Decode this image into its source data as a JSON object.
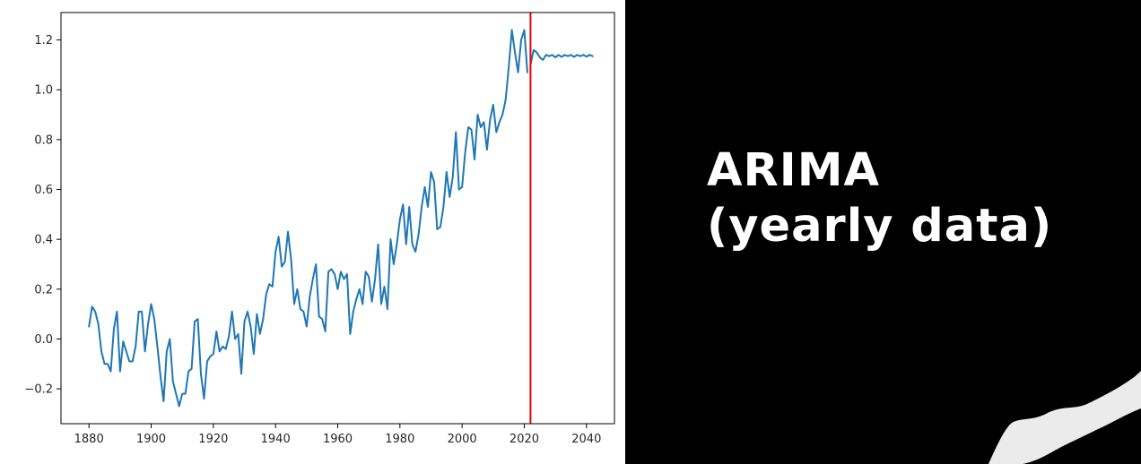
{
  "chart_data": {
    "type": "line",
    "title": "",
    "xlabel": "",
    "ylabel": "",
    "xlim": [
      1871,
      2049
    ],
    "ylim": [
      -0.34,
      1.31
    ],
    "grid": false,
    "x_ticks": [
      "1880",
      "1900",
      "1920",
      "1940",
      "1960",
      "1980",
      "2000",
      "2020",
      "2040"
    ],
    "y_ticks": [
      "−0.2",
      "0.0",
      "0.2",
      "0.4",
      "0.6",
      "0.8",
      "1.0",
      "1.2"
    ],
    "x_tick_values": [
      1880,
      1900,
      1920,
      1940,
      1960,
      1980,
      2000,
      2020,
      2040
    ],
    "y_tick_values": [
      -0.2,
      0.0,
      0.2,
      0.4,
      0.6,
      0.8,
      1.0,
      1.2
    ],
    "vline": {
      "x": 2022,
      "color": "#e8000b"
    },
    "series": [
      {
        "color": "#1f77b4",
        "x_start": 1880,
        "values": [
          0.05,
          0.13,
          0.11,
          0.06,
          -0.05,
          -0.1,
          -0.1,
          -0.13,
          0.04,
          0.11,
          -0.13,
          -0.01,
          -0.05,
          -0.09,
          -0.09,
          -0.03,
          0.11,
          0.11,
          -0.05,
          0.06,
          0.14,
          0.08,
          -0.03,
          -0.15,
          -0.25,
          -0.05,
          0.0,
          -0.17,
          -0.22,
          -0.27,
          -0.22,
          -0.22,
          -0.13,
          -0.12,
          0.07,
          0.08,
          -0.14,
          -0.24,
          -0.09,
          -0.07,
          -0.06,
          0.03,
          -0.05,
          -0.03,
          -0.04,
          0.01,
          0.11,
          0.0,
          0.02,
          -0.14,
          0.07,
          0.11,
          0.05,
          -0.06,
          0.1,
          0.02,
          0.08,
          0.18,
          0.22,
          0.21,
          0.35,
          0.41,
          0.29,
          0.31,
          0.43,
          0.32,
          0.14,
          0.2,
          0.12,
          0.11,
          0.05,
          0.17,
          0.24,
          0.3,
          0.09,
          0.08,
          0.03,
          0.27,
          0.28,
          0.26,
          0.2,
          0.27,
          0.24,
          0.26,
          0.02,
          0.11,
          0.16,
          0.2,
          0.14,
          0.27,
          0.25,
          0.15,
          0.24,
          0.38,
          0.14,
          0.21,
          0.12,
          0.4,
          0.3,
          0.38,
          0.48,
          0.54,
          0.38,
          0.53,
          0.38,
          0.35,
          0.42,
          0.53,
          0.61,
          0.53,
          0.67,
          0.63,
          0.44,
          0.45,
          0.53,
          0.67,
          0.57,
          0.65,
          0.83,
          0.6,
          0.61,
          0.75,
          0.85,
          0.84,
          0.72,
          0.9,
          0.85,
          0.87,
          0.76,
          0.88,
          0.94,
          0.83,
          0.87,
          0.9,
          0.96,
          1.09,
          1.24,
          1.15,
          1.07,
          1.2,
          1.24,
          1.07
        ]
      },
      {
        "color": "#1f77b4",
        "x_start": 2022,
        "values": [
          1.1,
          1.16,
          1.15,
          1.13,
          1.12,
          1.14,
          1.135,
          1.14,
          1.13,
          1.14,
          1.132,
          1.14,
          1.135,
          1.14,
          1.132,
          1.14,
          1.135,
          1.14,
          1.133,
          1.14,
          1.135
        ]
      }
    ]
  },
  "headline": {
    "line1": "ARIMA",
    "line2": "(yearly data)"
  }
}
